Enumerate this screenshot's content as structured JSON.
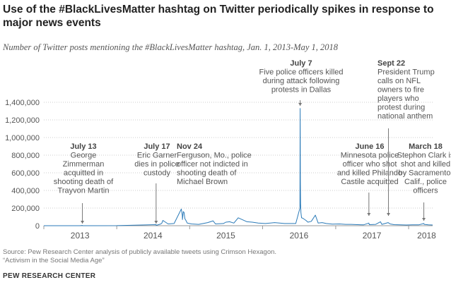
{
  "title": "Use of the #BlackLivesMatter hashtag on Twitter periodically spikes in response to major news events",
  "subtitle": "Number of Twitter posts mentioning the #BlackLivesMatter hashtag, Jan. 1, 2013-May 1, 2018",
  "source_line1": "Source: Pew Research Center analysis of publicly available tweets using Crimson Hexagon.",
  "source_line2": "“Activism in the Social Media Age”",
  "brand": "PEW RESEARCH CENTER",
  "colors": {
    "line": "#2a7ab8",
    "grid": "#cccccc",
    "axis": "#999999",
    "marker": "#777777"
  },
  "chart_data": {
    "type": "line",
    "title": "Use of the #BlackLivesMatter hashtag on Twitter periodically spikes in response to major news events",
    "subtitle": "Number of Twitter posts mentioning the #BlackLivesMatter hashtag, Jan. 1, 2013-May 1, 2018",
    "xlim": [
      "2013-01-01",
      "2018-05-01"
    ],
    "ylim": [
      0,
      1400000
    ],
    "y_ticks": [
      0,
      200000,
      400000,
      600000,
      800000,
      1000000,
      1200000,
      1400000
    ],
    "y_tick_labels": [
      "0",
      "200,000",
      "400,000",
      "600,000",
      "800,000",
      "1,000,000",
      "1,200,000",
      "1,400,000"
    ],
    "x_ticks": [
      "2013-07-01",
      "2014-07-01",
      "2015-07-01",
      "2016-07-01",
      "2017-07-01",
      "2018-04-01"
    ],
    "x_tick_labels": [
      "2013",
      "2014",
      "2015",
      "2016",
      "2017",
      "2018"
    ],
    "grid": true,
    "series": [
      {
        "x": [
          "2013-01-01",
          "2013-07-01",
          "2013-07-13",
          "2013-07-14",
          "2013-07-16",
          "2014-01-01",
          "2014-07-17",
          "2014-07-18",
          "2014-08-10",
          "2014-08-15",
          "2014-08-20",
          "2014-09-15",
          "2014-10-15",
          "2014-11-20",
          "2014-11-25",
          "2014-11-26",
          "2014-11-30",
          "2014-12-04",
          "2014-12-08",
          "2014-12-13",
          "2014-12-20",
          "2015-01-10",
          "2015-02-15",
          "2015-04-01",
          "2015-04-28",
          "2015-05-10",
          "2015-06-19",
          "2015-07-01",
          "2015-07-20",
          "2015-08-10",
          "2015-09-01",
          "2015-10-15",
          "2015-11-10",
          "2015-12-10",
          "2016-01-15",
          "2016-03-01",
          "2016-04-20",
          "2016-06-15",
          "2016-07-06",
          "2016-07-07",
          "2016-07-08",
          "2016-07-09",
          "2016-07-11",
          "2016-07-14",
          "2016-07-20",
          "2016-08-05",
          "2016-08-15",
          "2016-09-01",
          "2016-09-21",
          "2016-10-05",
          "2016-10-25",
          "2016-11-15",
          "2016-12-15",
          "2017-01-20",
          "2017-02-20",
          "2017-03-20",
          "2017-04-20",
          "2017-05-20",
          "2017-06-16",
          "2017-06-18",
          "2017-07-20",
          "2017-08-13",
          "2017-08-20",
          "2017-09-20",
          "2017-09-24",
          "2017-09-30",
          "2017-10-20",
          "2017-11-20",
          "2017-12-20",
          "2018-01-20",
          "2018-02-20",
          "2018-03-18",
          "2018-03-20",
          "2018-04-10",
          "2018-05-01"
        ],
        "values": [
          0,
          0,
          3000,
          1000,
          0,
          1000,
          12000,
          4000,
          20000,
          30000,
          60000,
          20000,
          25000,
          190000,
          115000,
          70000,
          160000,
          150000,
          80000,
          60000,
          30000,
          20000,
          15000,
          35000,
          55000,
          20000,
          25000,
          40000,
          45000,
          30000,
          90000,
          45000,
          40000,
          30000,
          25000,
          35000,
          25000,
          25000,
          200000,
          1330000,
          500000,
          250000,
          150000,
          90000,
          85000,
          60000,
          40000,
          50000,
          120000,
          30000,
          35000,
          25000,
          18000,
          20000,
          15000,
          15000,
          12000,
          10000,
          30000,
          12000,
          15000,
          45000,
          15000,
          35000,
          30000,
          20000,
          12000,
          10000,
          8000,
          10000,
          10000,
          25000,
          15000,
          10000,
          8000
        ]
      }
    ],
    "annotations": [
      {
        "date_label": "July 13",
        "date": "2013-07-13",
        "lines": [
          "George",
          "Zimmerman",
          "acquitted in",
          "shooting death of",
          "Trayvon Martin"
        ]
      },
      {
        "date_label": "July 17",
        "date": "2014-07-17",
        "lines": [
          "Eric Garner",
          "dies in police",
          "custody"
        ]
      },
      {
        "date_label": "Nov 24",
        "date": "2014-11-24",
        "lines": [
          "Ferguson, Mo., police",
          "officer not indicted in",
          "shooting death of",
          "Michael Brown"
        ]
      },
      {
        "date_label": "July 7",
        "date": "2016-07-07",
        "lines": [
          "Five police officers killed",
          "during attack following",
          "protests in Dallas"
        ]
      },
      {
        "date_label": "June 16",
        "date": "2017-06-16",
        "lines": [
          "Minnesota police",
          "officer who shot",
          "and killed Philando",
          "Castile acquitted"
        ]
      },
      {
        "date_label": "Sept 22",
        "date": "2017-09-22",
        "lines": [
          "President Trump",
          "calls on NFL",
          "owners to fire",
          "players who",
          "protest during",
          "national anthem"
        ]
      },
      {
        "date_label": "March 18",
        "date": "2018-03-18",
        "lines": [
          "Stephon Clark is",
          "shot and killed",
          "by Sacramento,",
          "Calif., police",
          "officers"
        ]
      }
    ]
  }
}
